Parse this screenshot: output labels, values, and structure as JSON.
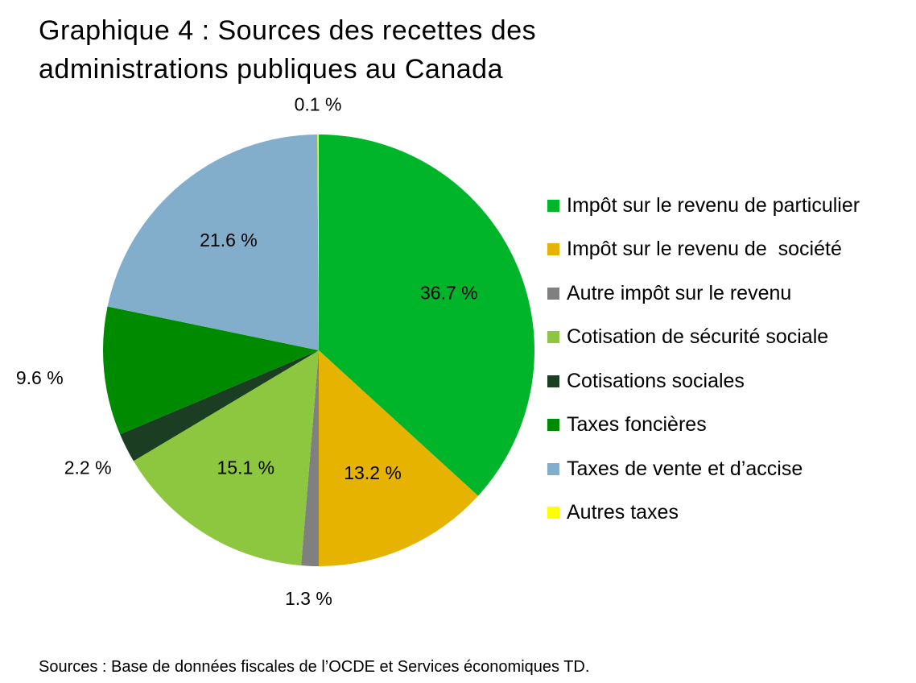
{
  "title_lines": [
    "Graphique 4 : Sources des recettes des",
    "administrations publiques au Canada"
  ],
  "source": "Sources : Base de données fiscales de l’OCDE et Services économiques TD.",
  "chart_data": {
    "type": "pie",
    "title": "Graphique 4 : Sources des recettes des administrations publiques au Canada",
    "legend_position": "right",
    "start": "top, clockwise",
    "slices": [
      {
        "label": "Impôt sur le revenu de particulier",
        "value": 36.7,
        "value_label": "36.7 %",
        "color": "#00b52a"
      },
      {
        "label": "Impôt sur le revenu de  société",
        "value": 13.2,
        "value_label": "13.2 %",
        "color": "#e6b300"
      },
      {
        "label": "Autre impôt sur le revenu",
        "value": 1.3,
        "value_label": "1.3 %",
        "color": "#808080"
      },
      {
        "label": "Cotisation de sécurité sociale",
        "value": 15.1,
        "value_label": "15.1 %",
        "color": "#8dc63f"
      },
      {
        "label": "Cotisations sociales",
        "value": 2.2,
        "value_label": "2.2 %",
        "color": "#1b3d22"
      },
      {
        "label": "Taxes foncières",
        "value": 9.6,
        "value_label": "9.6 %",
        "color": "#008a00"
      },
      {
        "label": "Taxes de vente et d’accise",
        "value": 21.6,
        "value_label": "21.6 %",
        "color": "#82aecb"
      },
      {
        "label": "Autres taxes",
        "value": 0.1,
        "value_label": "0.1 %",
        "color": "#ffff00"
      }
    ]
  }
}
